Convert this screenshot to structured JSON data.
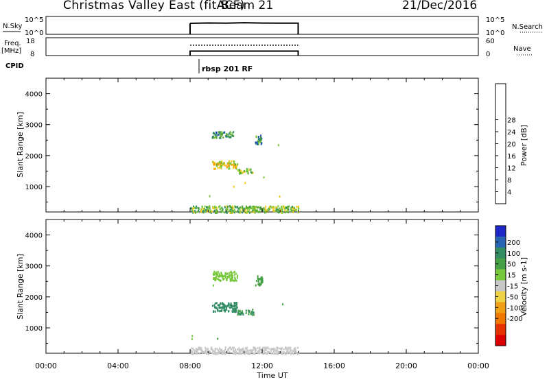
{
  "header": {
    "title": "Christmas Valley East (fitACF)",
    "beam": "Beam 21",
    "date": "21/Dec/2016"
  },
  "strips": {
    "nsky": {
      "label": "N.Sky",
      "ticks_left": [
        "10^5",
        "10^0"
      ],
      "ticks_right": [
        "10^5",
        "10^0"
      ],
      "right_label": "N.Search"
    },
    "freq": {
      "label_line1": "Freq.",
      "label_line2": "[MHz]",
      "ticks_left": [
        "18",
        "8"
      ],
      "ticks_right": [
        "60",
        "0"
      ],
      "right_label": "Nave"
    },
    "cpid": {
      "label": "CPID",
      "program": "rbsp 201 RF"
    }
  },
  "axes": {
    "xlabel": "Time UT",
    "xticks": [
      "00:00",
      "04:00",
      "08:00",
      "12:00",
      "16:00",
      "20:00",
      "00:00"
    ],
    "ylabel": "Slant Range [km]",
    "yticks": [
      "1000",
      "2000",
      "3000",
      "4000"
    ]
  },
  "colorbars": {
    "power": {
      "label": "Power [dB]",
      "ticks": [
        "4",
        "8",
        "12",
        "16",
        "20",
        "24",
        "28"
      ],
      "colors": [
        "#0000ff",
        "#1e50b4",
        "#328c64",
        "#5aaa32",
        "#78c83c",
        "#f0c814",
        "#f5a000",
        "#f07800",
        "#e63c00",
        "#dc0000"
      ]
    },
    "velocity": {
      "label": "Velocity [m s-1]",
      "ticks": [
        "200",
        "100",
        "50",
        "15",
        "-15",
        "-50",
        "-100",
        "-200"
      ],
      "colors": [
        "#1e28c8",
        "#2864b4",
        "#328c64",
        "#46a046",
        "#78c83c",
        "#c8c8c8",
        "#f0d246",
        "#f0a014",
        "#f07800",
        "#e63200",
        "#dc0000"
      ]
    }
  },
  "chart_data": [
    {
      "type": "line",
      "title": "N.Sky / N.Search",
      "x_range_hours": [
        0,
        24
      ],
      "series": [
        {
          "name": "N.Sky",
          "x": [
            8.0,
            9.0,
            10.0,
            11.0,
            12.0,
            13.0,
            14.0
          ],
          "y": [
            1200,
            1500,
            1300,
            1800,
            1400,
            1300,
            1300
          ]
        }
      ]
    },
    {
      "type": "line",
      "title": "Freq. [MHz] / Nave",
      "x_range_hours": [
        0,
        24
      ],
      "series": [
        {
          "name": "Freq.",
          "x": [
            8.0,
            14.0
          ],
          "y": [
            10.5,
            10.5
          ]
        },
        {
          "name": "Nave",
          "x": [
            8.0,
            14.0
          ],
          "y": [
            35,
            35
          ]
        }
      ]
    },
    {
      "type": "heatmap",
      "title": "Power [dB]",
      "xlim": [
        0,
        24
      ],
      "ylim": [
        180,
        4500
      ],
      "regions": [
        {
          "x": [
            9.2,
            10.4
          ],
          "y": [
            2600,
            2800
          ],
          "value": 8
        },
        {
          "x": [
            11.6,
            12.0
          ],
          "y": [
            2400,
            2700
          ],
          "value": 8
        },
        {
          "x": [
            9.2,
            10.6
          ],
          "y": [
            1600,
            1850
          ],
          "value": 16
        },
        {
          "x": [
            10.6,
            11.5
          ],
          "y": [
            1450,
            1600
          ],
          "value": 12
        },
        {
          "x": [
            8.0,
            14.0
          ],
          "y": [
            180,
            400
          ],
          "value": 12
        }
      ]
    },
    {
      "type": "heatmap",
      "title": "Velocity [m s-1]",
      "xlim": [
        0,
        24
      ],
      "ylim": [
        180,
        4500
      ],
      "regions": [
        {
          "x": [
            9.2,
            10.6
          ],
          "y": [
            2550,
            2850
          ],
          "value": 0
        },
        {
          "x": [
            11.6,
            12.0
          ],
          "y": [
            2400,
            2700
          ],
          "value": 40
        },
        {
          "x": [
            9.2,
            10.6
          ],
          "y": [
            1550,
            1850
          ],
          "value": 80
        },
        {
          "x": [
            10.6,
            11.5
          ],
          "y": [
            1450,
            1600
          ],
          "value": 50
        },
        {
          "x": [
            8.0,
            14.0
          ],
          "y": [
            180,
            400
          ],
          "value": -40
        }
      ]
    }
  ]
}
